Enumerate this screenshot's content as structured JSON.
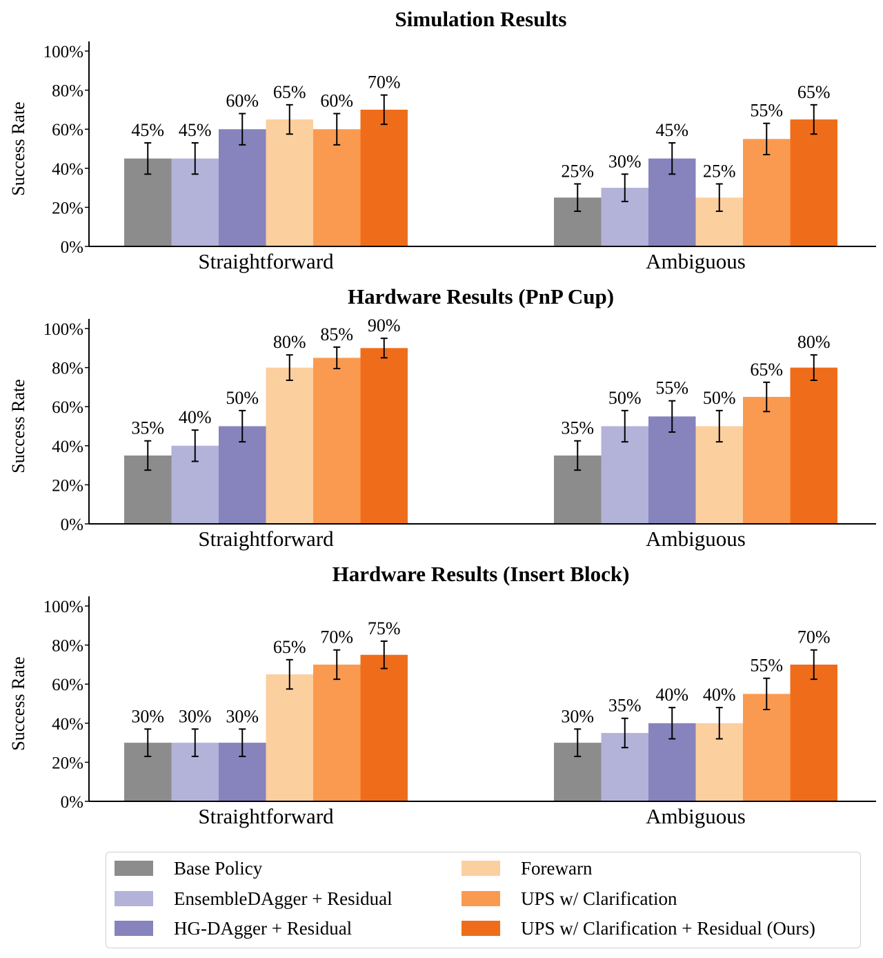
{
  "chart_data": [
    {
      "type": "bar",
      "title": "Simulation Results",
      "ylabel": "Success Rate",
      "ylim": [
        0,
        100
      ],
      "yticks": [
        "0%",
        "20%",
        "40%",
        "60%",
        "80%",
        "100%"
      ],
      "categories": [
        "Straightforward",
        "Ambiguous"
      ],
      "series": [
        {
          "name": "Base Policy",
          "values": [
            45,
            25
          ],
          "labels": [
            "45%",
            "25%"
          ],
          "err": [
            8,
            7
          ]
        },
        {
          "name": "EnsembleDAgger + Residual",
          "values": [
            45,
            30
          ],
          "labels": [
            "45%",
            "30%"
          ],
          "err": [
            8,
            7
          ]
        },
        {
          "name": "HG-DAgger + Residual",
          "values": [
            60,
            45
          ],
          "labels": [
            "60%",
            "45%"
          ],
          "err": [
            8,
            8
          ]
        },
        {
          "name": "Forewarn",
          "values": [
            65,
            25
          ],
          "labels": [
            "65%",
            "25%"
          ],
          "err": [
            7.5,
            7
          ]
        },
        {
          "name": "UPS w/ Clarification",
          "values": [
            60,
            55
          ],
          "labels": [
            "60%",
            "55%"
          ],
          "err": [
            8,
            8
          ]
        },
        {
          "name": "UPS w/ Clarification + Residual (Ours)",
          "values": [
            70,
            65
          ],
          "labels": [
            "70%",
            "65%"
          ],
          "err": [
            7.5,
            7.5
          ]
        }
      ],
      "error_bars": true,
      "grid": false
    },
    {
      "type": "bar",
      "title": "Hardware Results (PnP Cup)",
      "ylabel": "Success Rate",
      "ylim": [
        0,
        100
      ],
      "yticks": [
        "0%",
        "20%",
        "40%",
        "60%",
        "80%",
        "100%"
      ],
      "categories": [
        "Straightforward",
        "Ambiguous"
      ],
      "series": [
        {
          "name": "Base Policy",
          "values": [
            35,
            35
          ],
          "labels": [
            "35%",
            "35%"
          ],
          "err": [
            7.5,
            7.5
          ]
        },
        {
          "name": "EnsembleDAgger + Residual",
          "values": [
            40,
            50
          ],
          "labels": [
            "40%",
            "50%"
          ],
          "err": [
            8,
            8
          ]
        },
        {
          "name": "HG-DAgger + Residual",
          "values": [
            50,
            55
          ],
          "labels": [
            "50%",
            "55%"
          ],
          "err": [
            8,
            8
          ]
        },
        {
          "name": "Forewarn",
          "values": [
            80,
            50
          ],
          "labels": [
            "80%",
            "50%"
          ],
          "err": [
            6.5,
            8
          ]
        },
        {
          "name": "UPS w/ Clarification",
          "values": [
            85,
            65
          ],
          "labels": [
            "85%",
            "65%"
          ],
          "err": [
            5.5,
            7.5
          ]
        },
        {
          "name": "UPS w/ Clarification + Residual (Ours)",
          "values": [
            90,
            80
          ],
          "labels": [
            "90%",
            "80%"
          ],
          "err": [
            5,
            6.5
          ]
        }
      ],
      "error_bars": true,
      "grid": false
    },
    {
      "type": "bar",
      "title": "Hardware Results (Insert Block)",
      "ylabel": "Success Rate",
      "ylim": [
        0,
        100
      ],
      "yticks": [
        "0%",
        "20%",
        "40%",
        "60%",
        "80%",
        "100%"
      ],
      "categories": [
        "Straightforward",
        "Ambiguous"
      ],
      "series": [
        {
          "name": "Base Policy",
          "values": [
            30,
            30
          ],
          "labels": [
            "30%",
            "30%"
          ],
          "err": [
            7,
            7
          ]
        },
        {
          "name": "EnsembleDAgger + Residual",
          "values": [
            30,
            35
          ],
          "labels": [
            "30%",
            "35%"
          ],
          "err": [
            7,
            7.5
          ]
        },
        {
          "name": "HG-DAgger + Residual",
          "values": [
            30,
            40
          ],
          "labels": [
            "30%",
            "40%"
          ],
          "err": [
            7,
            8
          ]
        },
        {
          "name": "Forewarn",
          "values": [
            65,
            40
          ],
          "labels": [
            "65%",
            "40%"
          ],
          "err": [
            7.5,
            8
          ]
        },
        {
          "name": "UPS w/ Clarification",
          "values": [
            70,
            55
          ],
          "labels": [
            "70%",
            "55%"
          ],
          "err": [
            7.5,
            8
          ]
        },
        {
          "name": "UPS w/ Clarification + Residual (Ours)",
          "values": [
            75,
            70
          ],
          "labels": [
            "75%",
            "70%"
          ],
          "err": [
            7,
            7.5
          ]
        }
      ],
      "error_bars": true,
      "grid": false
    }
  ],
  "legend": {
    "placement": "bottom",
    "items": [
      {
        "label": "Base Policy",
        "color": "#8c8c8c"
      },
      {
        "label": "EnsembleDAgger + Residual",
        "color": "#b3b2d9"
      },
      {
        "label": "HG-DAgger + Residual",
        "color": "#8783bd"
      },
      {
        "label": "Forewarn",
        "color": "#fccf9f"
      },
      {
        "label": "UPS w/ Clarification",
        "color": "#fa9a50"
      },
      {
        "label": "UPS w/ Clarification + Residual (Ours)",
        "color": "#ef6d1a"
      }
    ]
  },
  "colors": [
    "#8c8c8c",
    "#b3b2d9",
    "#8783bd",
    "#fccf9f",
    "#fa9a50",
    "#ef6d1a"
  ]
}
